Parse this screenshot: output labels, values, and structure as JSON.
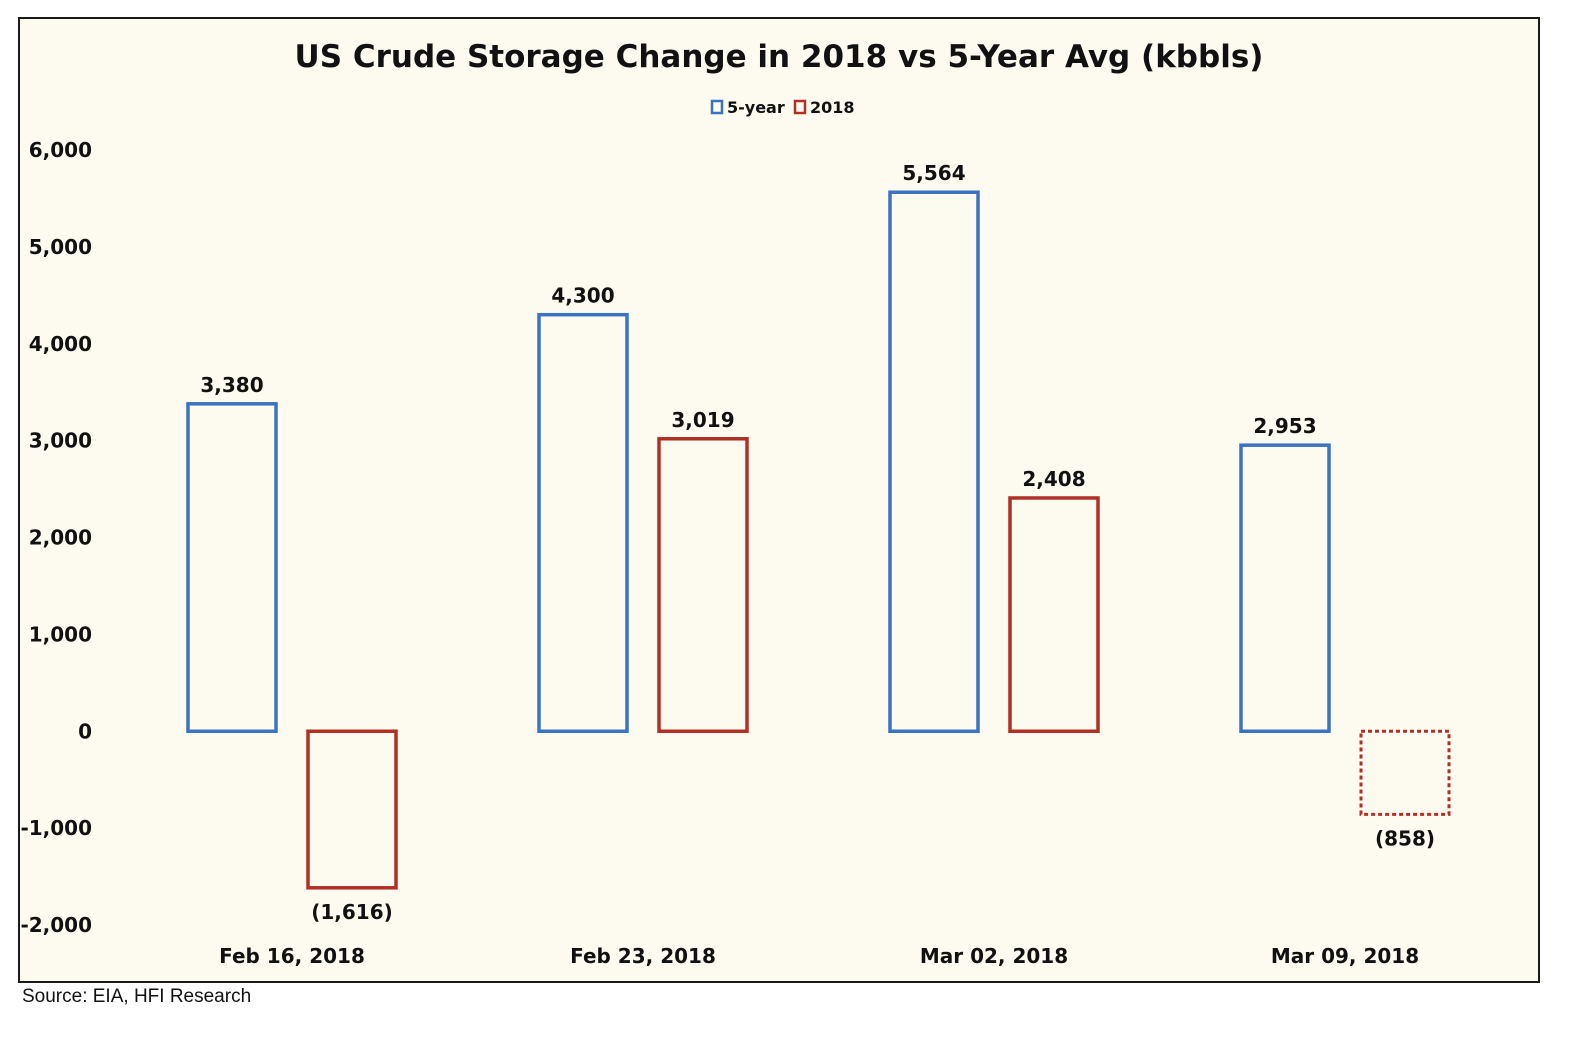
{
  "chart_data": {
    "type": "bar",
    "title": "US Crude Storage Change in 2018 vs 5-Year Avg (kbbls)",
    "categories": [
      "Feb 16, 2018",
      "Feb 23, 2018",
      "Mar 02, 2018",
      "Mar 09, 2018"
    ],
    "series": [
      {
        "name": "5-year",
        "values": [
          3380,
          4300,
          5564,
          2953
        ],
        "labels": [
          "3,380",
          "4,300",
          "5,564",
          "2,953"
        ],
        "color": "#3b73c0",
        "dashed": [
          false,
          false,
          false,
          false
        ]
      },
      {
        "name": "2018",
        "values": [
          -1616,
          3019,
          2408,
          -858
        ],
        "labels": [
          "(1,616)",
          "3,019",
          "2,408",
          "(858)"
        ],
        "color": "#b03026",
        "dashed": [
          false,
          false,
          false,
          true
        ]
      }
    ],
    "yticks": [
      6000,
      5000,
      4000,
      3000,
      2000,
      1000,
      0,
      -1000,
      -2000
    ],
    "ytick_labels": [
      "6,000",
      "5,000",
      "4,000",
      "3,000",
      "2,000",
      "1,000",
      "0",
      "-1,000",
      "-2,000"
    ],
    "ylim": [
      -2000,
      6000
    ],
    "grid": false,
    "legend_position": "top-center",
    "background": "#fdfbf0"
  },
  "source_note": "Source: EIA, HFI Research"
}
